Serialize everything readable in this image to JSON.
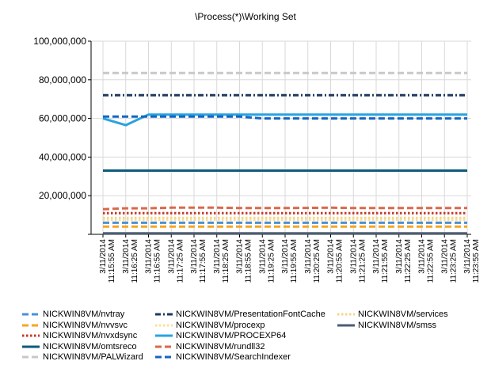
{
  "chart_data": {
    "type": "line",
    "title": "\\Process(*)\\Working Set",
    "xlabel": "",
    "ylabel": "",
    "ylim": [
      0,
      100000000
    ],
    "yticks": [
      0,
      20000000,
      40000000,
      60000000,
      80000000,
      100000000
    ],
    "ytick_labels": [
      "",
      "20,000,000",
      "40,000,000",
      "60,000,000",
      "80,000,000",
      "100,000,000"
    ],
    "grid": true,
    "legend_position": "bottom",
    "x": [
      [
        "3/11/2014",
        "11:15:55 AM"
      ],
      [
        "3/11/2014",
        "11:16:25 AM"
      ],
      [
        "3/11/2014",
        "11:16:55 AM"
      ],
      [
        "3/11/2014",
        "11:17:25 AM"
      ],
      [
        "3/11/2014",
        "11:17:55 AM"
      ],
      [
        "3/11/2014",
        "11:18:25 AM"
      ],
      [
        "3/11/2014",
        "11:18:55 AM"
      ],
      [
        "3/11/2014",
        "11:19:25 AM"
      ],
      [
        "3/11/2014",
        "11:19:55 AM"
      ],
      [
        "3/11/2014",
        "11:20:25 AM"
      ],
      [
        "3/11/2014",
        "11:20:55 AM"
      ],
      [
        "3/11/2014",
        "11:21:25 AM"
      ],
      [
        "3/11/2014",
        "11:21:55 AM"
      ],
      [
        "3/11/2014",
        "11:22:25 AM"
      ],
      [
        "3/11/2014",
        "11:22:55 AM"
      ],
      [
        "3/11/2014",
        "11:23:25 AM"
      ],
      [
        "3/11/2014",
        "11:23:55 AM"
      ]
    ],
    "series": [
      {
        "name": "NICKWIN8VM/nvtray",
        "color": "#4a90d9",
        "dash": "dash",
        "values": [
          6000000,
          6000000,
          6000000,
          6000000,
          6000000,
          6000000,
          6000000,
          6000000,
          6000000,
          6000000,
          6000000,
          6000000,
          6000000,
          6000000,
          6000000,
          6000000,
          6000000
        ]
      },
      {
        "name": "NICKWIN8VM/nvvsvc",
        "color": "#f5a623",
        "dash": "dash",
        "values": [
          4000000,
          4000000,
          4000000,
          4000000,
          4000000,
          4000000,
          4000000,
          4000000,
          4000000,
          4000000,
          4000000,
          4000000,
          4000000,
          4000000,
          4000000,
          4000000,
          4000000
        ]
      },
      {
        "name": "NICKWIN8VM/nvxdsync",
        "color": "#c0392b",
        "dash": "dot",
        "values": [
          11000000,
          11000000,
          11000000,
          11000000,
          11000000,
          11000000,
          11000000,
          11000000,
          11000000,
          11000000,
          11000000,
          11000000,
          11000000,
          11000000,
          11000000,
          11000000,
          11000000
        ]
      },
      {
        "name": "NICKWIN8VM/omtsreco",
        "color": "#0e5a7a",
        "dash": "solid",
        "values": [
          33000000,
          33000000,
          33000000,
          33000000,
          33000000,
          33000000,
          33000000,
          33000000,
          33000000,
          33000000,
          33000000,
          33000000,
          33000000,
          33000000,
          33000000,
          33000000,
          33000000
        ]
      },
      {
        "name": "NICKWIN8VM/PALWizard",
        "color": "#c8c8c8",
        "dash": "dash",
        "values": [
          83500000,
          83500000,
          83500000,
          83500000,
          83500000,
          83500000,
          83500000,
          83500000,
          83500000,
          83500000,
          83500000,
          83500000,
          83500000,
          83500000,
          83500000,
          83500000,
          83500000
        ]
      },
      {
        "name": "NICKWIN8VM/PresentationFontCache",
        "color": "#1f3a5f",
        "dash": "dashdot",
        "values": [
          72000000,
          72000000,
          72000000,
          72000000,
          72000000,
          72000000,
          72000000,
          72000000,
          72000000,
          72000000,
          72000000,
          72000000,
          72000000,
          72000000,
          72000000,
          72000000,
          72000000
        ]
      },
      {
        "name": "NICKWIN8VM/procexp",
        "color": "#f7e29c",
        "dash": "dot",
        "values": [
          7500000,
          7500000,
          7500000,
          7500000,
          7500000,
          7500000,
          7500000,
          7500000,
          7500000,
          7500000,
          7500000,
          7500000,
          7500000,
          7500000,
          7500000,
          7500000,
          7500000
        ]
      },
      {
        "name": "NICKWIN8VM/PROCEXP64",
        "color": "#29a3e0",
        "dash": "solid",
        "values": [
          60000000,
          56500000,
          62000000,
          62000000,
          62000000,
          62000000,
          62000000,
          62000000,
          62000000,
          62000000,
          62000000,
          62000000,
          62000000,
          62000000,
          62000000,
          62000000,
          62000000
        ]
      },
      {
        "name": "NICKWIN8VM/rundll32",
        "color": "#d9694a",
        "dash": "dash",
        "values": [
          13000000,
          13500000,
          13500000,
          13800000,
          13800000,
          13800000,
          13600000,
          13600000,
          13600000,
          13700000,
          13800000,
          13600000,
          13600000,
          13600000,
          13600000,
          13600000,
          13600000
        ]
      },
      {
        "name": "NICKWIN8VM/SearchIndexer",
        "color": "#1565c0",
        "dash": "dash",
        "values": [
          61000000,
          61000000,
          61000000,
          61000000,
          61000000,
          61000000,
          61000000,
          60000000,
          60000000,
          60000000,
          60000000,
          60000000,
          60000000,
          60000000,
          60000000,
          60000000,
          60000000
        ]
      },
      {
        "name": "NICKWIN8VM/services",
        "color": "#f7d48a",
        "dash": "dot",
        "values": [
          8500000,
          8500000,
          8500000,
          8500000,
          8500000,
          8500000,
          8500000,
          8500000,
          8500000,
          8500000,
          8500000,
          8500000,
          8500000,
          8500000,
          8500000,
          8500000,
          8500000
        ]
      },
      {
        "name": "NICKWIN8VM/smss",
        "color": "#4b5d73",
        "dash": "solid",
        "values": [
          500000,
          500000,
          500000,
          500000,
          500000,
          500000,
          500000,
          500000,
          500000,
          500000,
          500000,
          500000,
          500000,
          500000,
          500000,
          500000,
          500000
        ]
      }
    ]
  }
}
